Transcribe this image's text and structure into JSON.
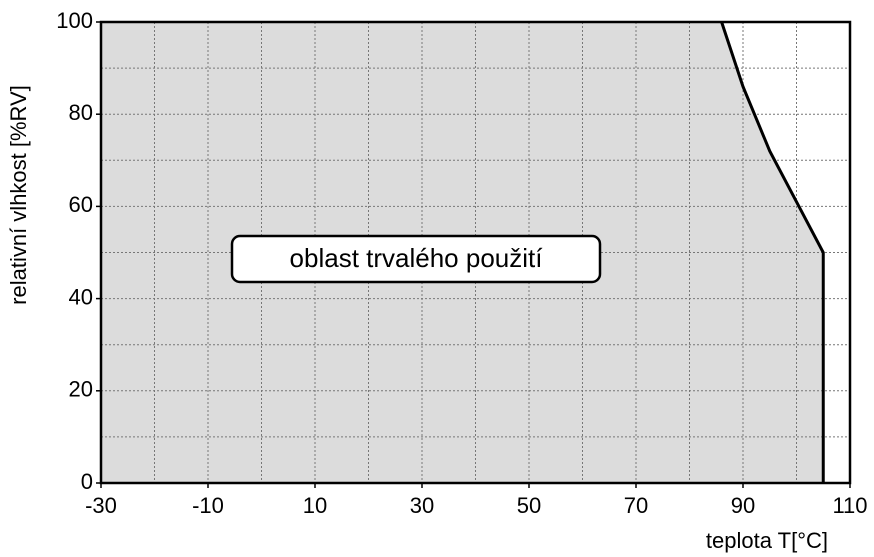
{
  "chart_data": {
    "type": "area",
    "x_label": "teplota T[°C]",
    "y_label": "relativní vlhkost  [%RV]",
    "annotation": "oblast trvalého použití",
    "x": [
      86,
      90,
      95,
      100,
      105,
      105
    ],
    "values": [
      100,
      86,
      72,
      61,
      50,
      0
    ],
    "color": "#dcdcdc",
    "line_color": "#000000",
    "xlim": [
      -30,
      110
    ],
    "ylim": [
      0,
      100
    ],
    "xticks": [
      -30,
      -10,
      10,
      30,
      50,
      70,
      90,
      110
    ],
    "yticks": [
      0,
      20,
      40,
      60,
      80,
      100
    ],
    "xgrid": [
      -20,
      -10,
      0,
      10,
      20,
      30,
      40,
      50,
      60,
      70,
      80,
      90,
      100
    ],
    "ygrid": [
      10,
      20,
      30,
      40,
      50,
      60,
      70,
      80,
      90
    ],
    "grid": true
  }
}
